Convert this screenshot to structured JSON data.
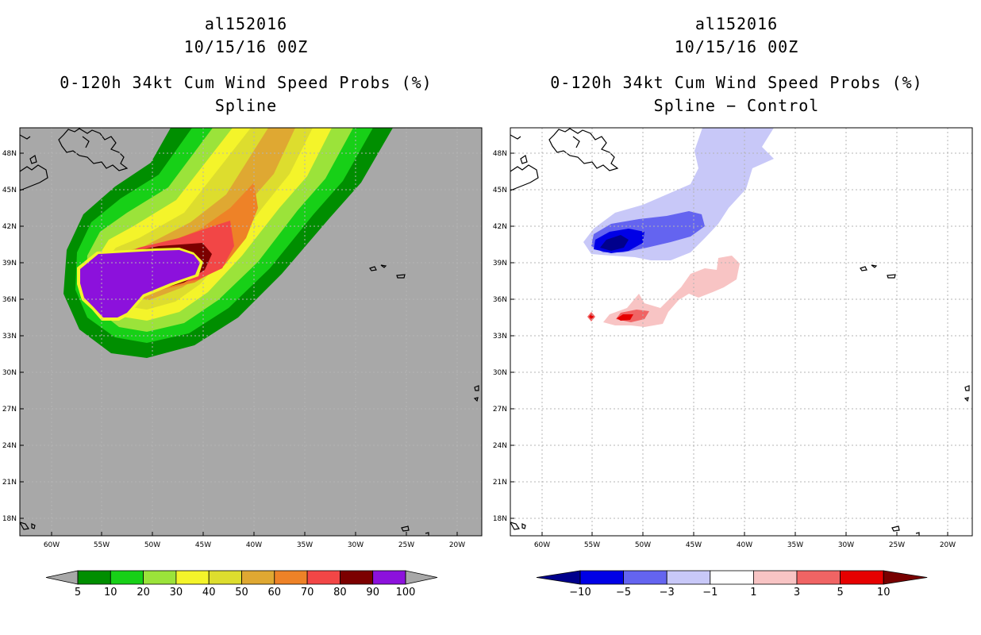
{
  "panels": [
    {
      "storm_id": "al152016",
      "datetime": "10/15/16 00Z",
      "product": "0-120h 34kt Cum Wind Speed Probs (%)",
      "subtitle": "Spline"
    },
    {
      "storm_id": "al152016",
      "datetime": "10/15/16 00Z",
      "product": "0-120h 34kt Cum Wind Speed Probs (%)",
      "subtitle": "Spline − Control"
    }
  ],
  "lat_labels": [
    "48N",
    "45N",
    "42N",
    "39N",
    "36N",
    "33N",
    "30N",
    "27N",
    "24N",
    "21N",
    "18N"
  ],
  "lon_labels": [
    "60W",
    "55W",
    "50W",
    "45W",
    "40W",
    "35W",
    "30W",
    "25W",
    "20W"
  ],
  "colorbar_left": {
    "labels": [
      "5",
      "10",
      "20",
      "30",
      "40",
      "50",
      "60",
      "70",
      "80",
      "90",
      "100"
    ],
    "colors": [
      "#008e00",
      "#17d017",
      "#9be33a",
      "#f4f42a",
      "#dddd2e",
      "#dfa832",
      "#ee8227",
      "#f24646",
      "#7c0000",
      "#8c11dc"
    ],
    "extend_color": "#a8a8a8"
  },
  "colorbar_right": {
    "labels": [
      "−10",
      "−5",
      "−3",
      "−1",
      "1",
      "3",
      "5",
      "10"
    ],
    "colors": [
      "#0000e6",
      "#6464f0",
      "#c8c8f8",
      "#ffffff",
      "#f8c4c4",
      "#f06464",
      "#e60000"
    ],
    "low_extend": "#00008c",
    "high_extend": "#780000"
  },
  "colors": {
    "ocean_bg": "#a8a8a8",
    "diff_bg": "#ffffff",
    "grid": "#b4b4b4"
  }
}
